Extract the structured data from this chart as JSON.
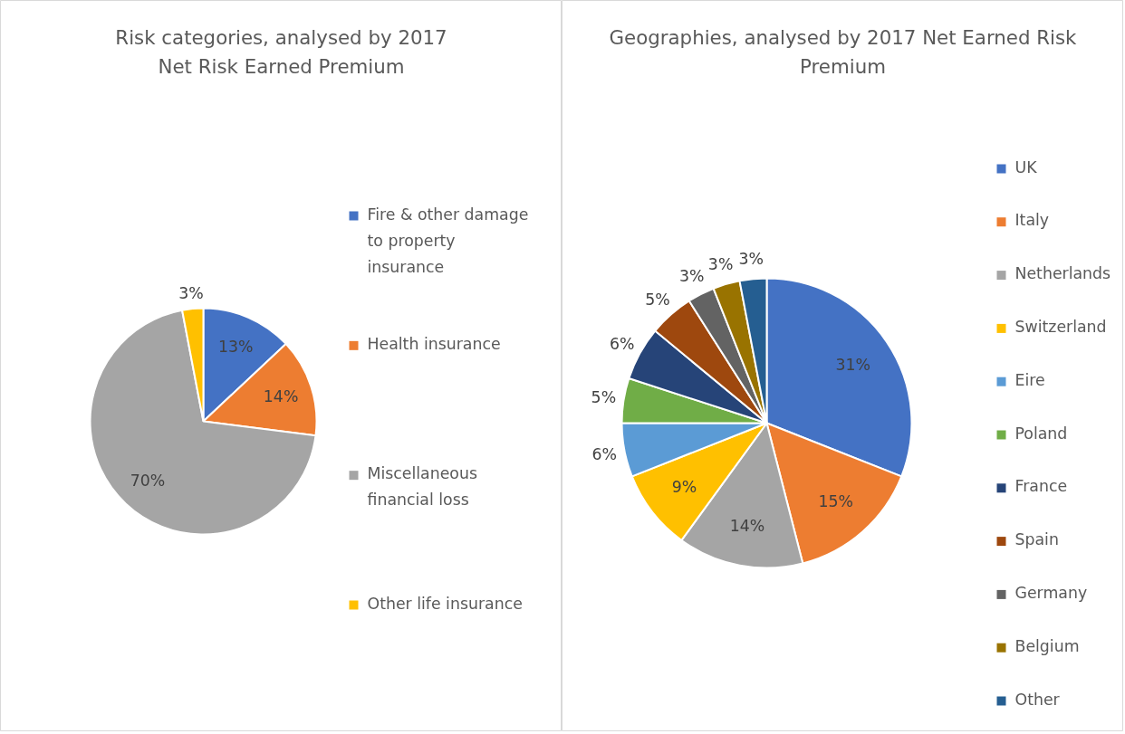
{
  "chart_data": [
    {
      "type": "pie",
      "title": "Risk categories, analysed by 2017 Net Risk Earned Premium",
      "categories": [
        "Fire & other damage to property insurance",
        "Health insurance",
        "Miscellaneous financial loss",
        "Other life insurance"
      ],
      "values": [
        13,
        14,
        70,
        3
      ],
      "colors": [
        "#4472c4",
        "#ed7d31",
        "#a5a5a5",
        "#ffc000"
      ],
      "value_labels": [
        "13%",
        "14%",
        "70%",
        "3%"
      ],
      "legend": "right"
    },
    {
      "type": "pie",
      "title": "Geographies, analysed by 2017 Net Earned Risk Premium",
      "categories": [
        "UK",
        "Italy",
        "Netherlands",
        "Switzerland",
        "Eire",
        "Poland",
        "France",
        "Spain",
        "Germany",
        "Belgium",
        "Other"
      ],
      "values": [
        31,
        15,
        14,
        9,
        6,
        5,
        6,
        5,
        3,
        3,
        3
      ],
      "colors": [
        "#4472c4",
        "#ed7d31",
        "#a5a5a5",
        "#ffc000",
        "#5b9bd5",
        "#70ad47",
        "#264478",
        "#9e480e",
        "#636363",
        "#997300",
        "#255e91"
      ],
      "value_labels": [
        "31%",
        "15%",
        "14%",
        "9%",
        "6%",
        "5%",
        "6%",
        "5%",
        "3%",
        "3%",
        "3%"
      ],
      "legend": "right"
    }
  ]
}
